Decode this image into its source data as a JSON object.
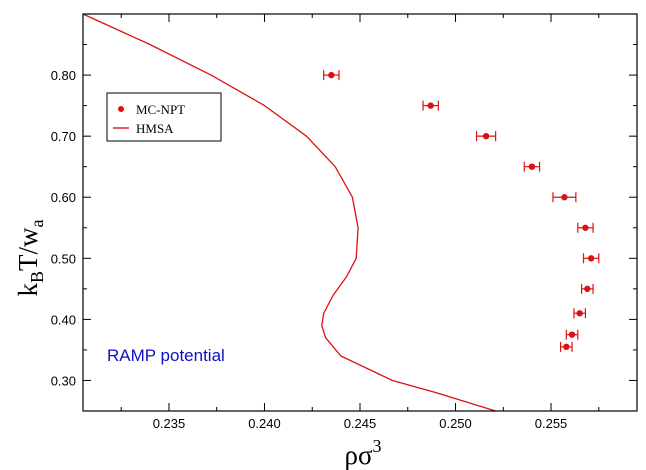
{
  "chart_data": {
    "type": "scatter",
    "xlabel": "ρσ3",
    "xlabel_main": "ρσ",
    "xlabel_sup": "3",
    "ylabel": "kBT/wa",
    "ylabel_k": "k",
    "ylabel_k_sub": "B",
    "ylabel_mid": "T/w",
    "ylabel_w_sub": "a",
    "xlim": [
      0.2305,
      0.2595
    ],
    "ylim": [
      0.25,
      0.9
    ],
    "xticks": [
      0.235,
      0.24,
      0.245,
      0.25,
      0.255
    ],
    "xtick_labels": [
      "0.235",
      "0.240",
      "0.245",
      "0.250",
      "0.255"
    ],
    "yticks": [
      0.3,
      0.4,
      0.5,
      0.6,
      0.7,
      0.8
    ],
    "ytick_labels": [
      "0.30",
      "0.40",
      "0.50",
      "0.60",
      "0.70",
      "0.80"
    ],
    "grid": false,
    "legend_position": "upper-left",
    "color": "#dd1111",
    "annotation": {
      "text": "RAMP  potential",
      "color": "#1010c0"
    },
    "series": [
      {
        "name": "MC-NPT",
        "kind": "points-with-xerror",
        "points": [
          {
            "x": 0.2435,
            "y": 0.8,
            "xerr": 0.0004
          },
          {
            "x": 0.2487,
            "y": 0.75,
            "xerr": 0.0004
          },
          {
            "x": 0.2516,
            "y": 0.7,
            "xerr": 0.0005
          },
          {
            "x": 0.254,
            "y": 0.65,
            "xerr": 0.0004
          },
          {
            "x": 0.2557,
            "y": 0.6,
            "xerr": 0.0006
          },
          {
            "x": 0.2568,
            "y": 0.55,
            "xerr": 0.0004
          },
          {
            "x": 0.2571,
            "y": 0.5,
            "xerr": 0.0004
          },
          {
            "x": 0.2569,
            "y": 0.45,
            "xerr": 0.0003
          },
          {
            "x": 0.2565,
            "y": 0.41,
            "xerr": 0.0003
          },
          {
            "x": 0.2561,
            "y": 0.375,
            "xerr": 0.0003
          },
          {
            "x": 0.2558,
            "y": 0.355,
            "xerr": 0.0003
          }
        ]
      },
      {
        "name": "HMSA",
        "kind": "line",
        "points": [
          [
            0.2305,
            0.9
          ],
          [
            0.234,
            0.85
          ],
          [
            0.2372,
            0.8
          ],
          [
            0.24,
            0.75
          ],
          [
            0.2422,
            0.7
          ],
          [
            0.2437,
            0.65
          ],
          [
            0.2446,
            0.6
          ],
          [
            0.2449,
            0.55
          ],
          [
            0.2448,
            0.5
          ],
          [
            0.2443,
            0.47
          ],
          [
            0.2436,
            0.44
          ],
          [
            0.2431,
            0.41
          ],
          [
            0.243,
            0.39
          ],
          [
            0.2432,
            0.37
          ],
          [
            0.244,
            0.34
          ],
          [
            0.2467,
            0.3
          ],
          [
            0.249,
            0.28
          ],
          [
            0.2521,
            0.25
          ]
        ]
      }
    ]
  }
}
